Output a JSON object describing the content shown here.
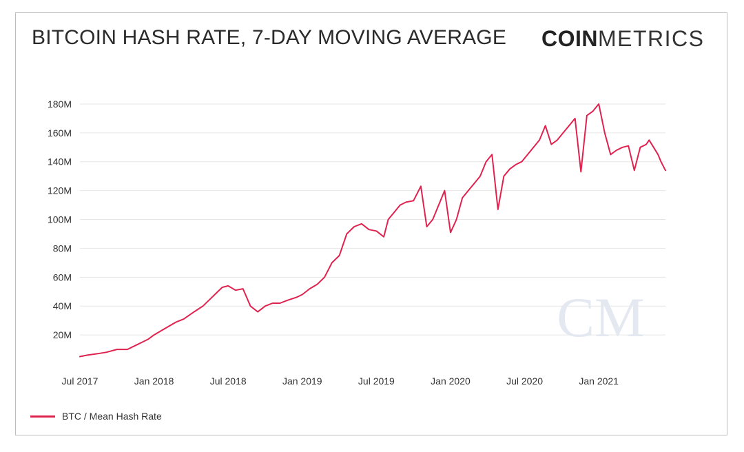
{
  "header": {
    "title": "BITCOIN HASH RATE, 7-DAY MOVING AVERAGE",
    "brand_bold": "COIN",
    "brand_light": "METRICS"
  },
  "watermark": {
    "text": "CM",
    "color": "#e4e8f0"
  },
  "colors": {
    "series": "#e0224f",
    "grid": "#e6e6e6",
    "text": "#333333"
  },
  "legend": {
    "label": "BTC / Mean Hash Rate",
    "position": "bottom-left"
  },
  "chart_data": {
    "type": "line",
    "title": "BITCOIN HASH RATE, 7-DAY MOVING AVERAGE",
    "xlabel": "",
    "ylabel": "",
    "grid": true,
    "x_ticks": [
      "Jul 2017",
      "Jan 2018",
      "Jul 2018",
      "Jan 2019",
      "Jul 2019",
      "Jan 2020",
      "Jul 2020",
      "Jan 2021"
    ],
    "y_ticks": [
      "20M",
      "40M",
      "60M",
      "80M",
      "100M",
      "120M",
      "140M",
      "160M",
      "180M"
    ],
    "ylim": [
      0,
      190
    ],
    "xlim": [
      2017.5,
      2021.45
    ],
    "series": [
      {
        "name": "BTC / Mean Hash Rate",
        "x": [
          2017.5,
          2017.55,
          2017.62,
          2017.68,
          2017.75,
          2017.82,
          2017.88,
          2017.92,
          2017.96,
          2018.0,
          2018.05,
          2018.1,
          2018.15,
          2018.2,
          2018.27,
          2018.33,
          2018.38,
          2018.42,
          2018.46,
          2018.5,
          2018.55,
          2018.6,
          2018.65,
          2018.7,
          2018.75,
          2018.8,
          2018.85,
          2018.9,
          2018.93,
          2018.96,
          2019.0,
          2019.05,
          2019.1,
          2019.15,
          2019.2,
          2019.25,
          2019.3,
          2019.35,
          2019.4,
          2019.45,
          2019.5,
          2019.55,
          2019.58,
          2019.62,
          2019.66,
          2019.7,
          2019.75,
          2019.8,
          2019.84,
          2019.88,
          2019.92,
          2019.96,
          2020.0,
          2020.04,
          2020.08,
          2020.12,
          2020.16,
          2020.2,
          2020.24,
          2020.28,
          2020.32,
          2020.36,
          2020.4,
          2020.44,
          2020.48,
          2020.52,
          2020.56,
          2020.6,
          2020.64,
          2020.68,
          2020.72,
          2020.76,
          2020.8,
          2020.84,
          2020.88,
          2020.92,
          2020.96,
          2021.0,
          2021.04,
          2021.08,
          2021.12,
          2021.16,
          2021.2,
          2021.24,
          2021.28,
          2021.32,
          2021.34,
          2021.37,
          2021.4,
          2021.42,
          2021.44,
          2021.45
        ],
        "y": [
          5,
          6,
          7,
          8,
          10,
          10,
          13,
          15,
          17,
          20,
          23,
          26,
          29,
          31,
          36,
          40,
          45,
          49,
          53,
          54,
          51,
          52,
          40,
          36,
          40,
          42,
          42,
          44,
          45,
          46,
          48,
          52,
          55,
          60,
          70,
          75,
          90,
          95,
          97,
          93,
          92,
          88,
          100,
          105,
          110,
          112,
          113,
          123,
          95,
          100,
          110,
          120,
          91,
          100,
          115,
          120,
          125,
          130,
          140,
          145,
          107,
          130,
          135,
          138,
          140,
          145,
          150,
          155,
          165,
          152,
          155,
          160,
          165,
          170,
          133,
          172,
          175,
          180,
          160,
          145,
          148,
          150,
          151,
          134,
          150,
          152,
          155,
          150,
          145,
          140,
          136,
          134
        ]
      }
    ]
  }
}
